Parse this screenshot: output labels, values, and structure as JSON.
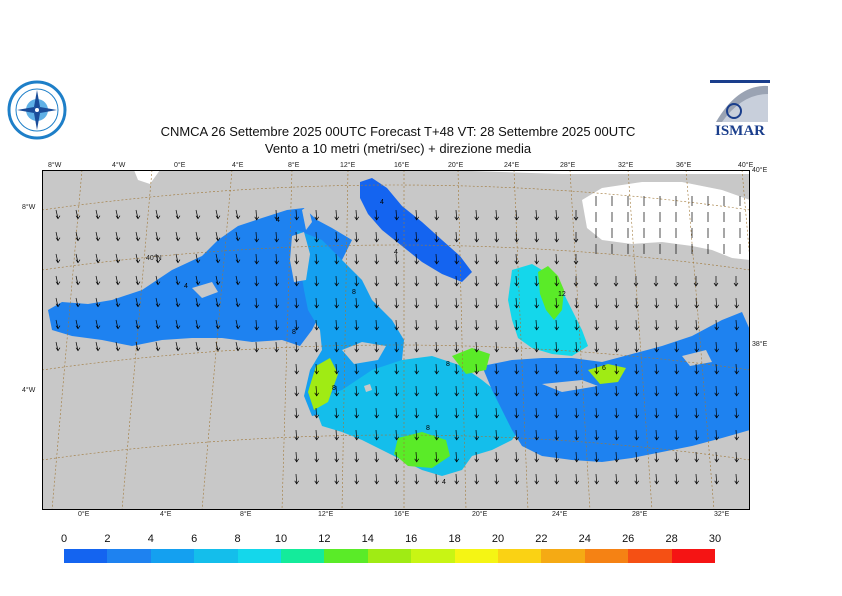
{
  "header": {
    "title_line1": "CNMCA 26 Settembre 2025 00UTC Forecast T+48 VT: 28 Settembre 2025 00UTC",
    "title_line2": "Vento a 10 metri (metri/sec) + direzione media"
  },
  "logos": {
    "left": {
      "icon": "compass-rose-emblem-icon",
      "color": "#1e7fc8"
    },
    "right": {
      "icon": "ismar-logo",
      "text": "ISMAR",
      "color": "#1a3e8c"
    }
  },
  "map": {
    "top_lon_labels": [
      "8°W",
      "4°W",
      "0°E",
      "4°E",
      "8°E",
      "12°E",
      "16°E",
      "20°E",
      "24°E",
      "28°E",
      "32°E",
      "36°E",
      "40°E"
    ],
    "bottom_lon_labels": [
      "0°E",
      "4°E",
      "8°E",
      "12°E",
      "16°E",
      "20°E",
      "24°E",
      "28°E",
      "32°E"
    ],
    "left_lat_labels": [
      "8°W",
      "40°N",
      "4°W"
    ],
    "right_lat_labels": [
      "40°E",
      "38°E"
    ],
    "contour_labels": [
      "4",
      "4",
      "4",
      "4",
      "8",
      "8",
      "8",
      "8",
      "12",
      "6",
      "4",
      "8"
    ],
    "colors": {
      "land": "#c8c8c8",
      "no_data": "#ffffff",
      "grid": "#a07838",
      "arrow": "#000000"
    }
  },
  "legend": {
    "ticks": [
      "0",
      "2",
      "4",
      "6",
      "8",
      "10",
      "12",
      "14",
      "16",
      "18",
      "20",
      "22",
      "24",
      "26",
      "28",
      "30"
    ],
    "colors": [
      "#1464f0",
      "#1e82f0",
      "#14a0f0",
      "#14beeb",
      "#14d7eb",
      "#14eb9b",
      "#5aeb28",
      "#a0eb14",
      "#c8f514",
      "#f5f514",
      "#fad214",
      "#f5aa14",
      "#f58214",
      "#f55014",
      "#f51414",
      "#f5148c"
    ]
  }
}
